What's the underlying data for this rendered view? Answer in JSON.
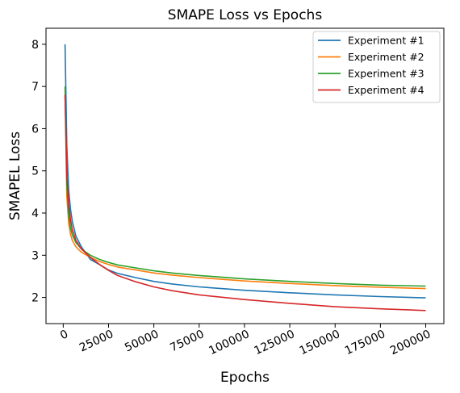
{
  "chart_data": {
    "type": "line",
    "title": "SMAPE Loss vs Epochs",
    "xlabel": "Epochs",
    "ylabel": "SMAPEL Loss",
    "xlim": [
      -9500,
      210000
    ],
    "ylim": [
      1.38,
      8.38
    ],
    "xticks": [
      0,
      25000,
      50000,
      75000,
      100000,
      125000,
      150000,
      175000,
      200000
    ],
    "xtick_labels": [
      "0",
      "25000",
      "50000",
      "75000",
      "100000",
      "125000",
      "150000",
      "175000",
      "200000"
    ],
    "yticks": [
      2,
      3,
      4,
      5,
      6,
      7,
      8
    ],
    "ytick_labels": [
      "2",
      "3",
      "4",
      "5",
      "6",
      "7",
      "8"
    ],
    "xtick_rotation": -25,
    "grid": false,
    "legend_position": "top-right",
    "series": [
      {
        "name": "Experiment #1",
        "color": "#1f77b4",
        "x": [
          1000,
          2000,
          3000,
          4000,
          5000,
          7000,
          10000,
          15000,
          20000,
          25000,
          30000,
          40000,
          50000,
          60000,
          75000,
          100000,
          125000,
          150000,
          175000,
          200000
        ],
        "y": [
          8.0,
          5.6,
          4.55,
          4.1,
          3.8,
          3.45,
          3.2,
          2.9,
          2.78,
          2.65,
          2.57,
          2.47,
          2.38,
          2.32,
          2.25,
          2.17,
          2.11,
          2.06,
          2.02,
          1.99
        ]
      },
      {
        "name": "Experiment #2",
        "color": "#ff7f0e",
        "x": [
          1000,
          2000,
          3000,
          4000,
          5000,
          7000,
          10000,
          15000,
          20000,
          25000,
          30000,
          40000,
          50000,
          60000,
          75000,
          100000,
          125000,
          150000,
          175000,
          200000
        ],
        "y": [
          6.8,
          4.4,
          3.75,
          3.5,
          3.35,
          3.2,
          3.07,
          2.95,
          2.85,
          2.78,
          2.72,
          2.65,
          2.58,
          2.53,
          2.47,
          2.39,
          2.33,
          2.28,
          2.24,
          2.21
        ]
      },
      {
        "name": "Experiment #3",
        "color": "#2ca02c",
        "x": [
          1000,
          2000,
          3000,
          4000,
          5000,
          7000,
          10000,
          15000,
          20000,
          25000,
          30000,
          40000,
          50000,
          60000,
          75000,
          100000,
          125000,
          150000,
          175000,
          200000
        ],
        "y": [
          7.0,
          4.7,
          3.95,
          3.65,
          3.48,
          3.3,
          3.15,
          3.0,
          2.9,
          2.83,
          2.77,
          2.7,
          2.63,
          2.58,
          2.52,
          2.44,
          2.38,
          2.33,
          2.29,
          2.27
        ]
      },
      {
        "name": "Experiment #4",
        "color": "#d62728",
        "x": [
          1000,
          2000,
          3000,
          4000,
          5000,
          7000,
          10000,
          15000,
          20000,
          25000,
          30000,
          40000,
          50000,
          60000,
          75000,
          100000,
          125000,
          150000,
          175000,
          200000
        ],
        "y": [
          6.8,
          4.9,
          4.2,
          3.85,
          3.6,
          3.35,
          3.15,
          2.95,
          2.78,
          2.64,
          2.52,
          2.37,
          2.25,
          2.16,
          2.06,
          1.95,
          1.86,
          1.78,
          1.73,
          1.69
        ]
      }
    ]
  }
}
